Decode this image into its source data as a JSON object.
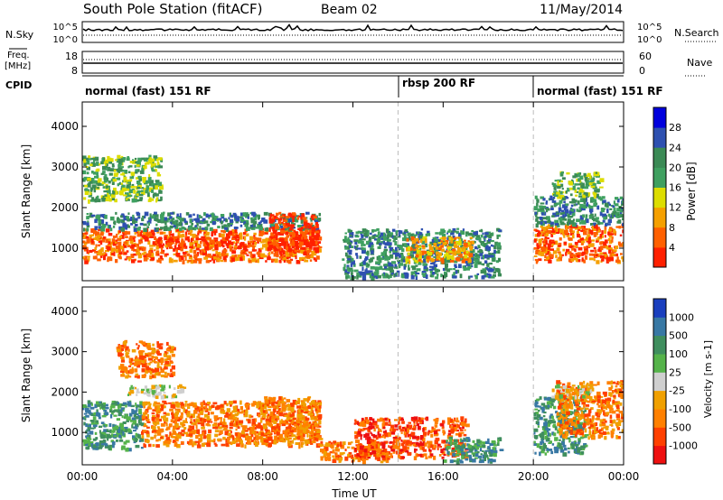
{
  "header": {
    "title": "South Pole Station (fitACF)",
    "beam": "Beam 02",
    "date": "11/May/2014"
  },
  "strip_panels": {
    "nsky": {
      "label": "N.Sky",
      "right_label": "N.Search",
      "left_ticks": [
        "10^5",
        "10^0"
      ],
      "right_ticks": [
        "10^5",
        "10^0"
      ]
    },
    "freq": {
      "label_line1": "Freq.",
      "label_line2": "[MHz]",
      "right_label": "Nave",
      "left_ticks": [
        "18",
        "8"
      ],
      "right_ticks": [
        "60",
        "0"
      ]
    },
    "cpid": {
      "label": "CPID",
      "segments": [
        {
          "label": "normal (fast) 151 RF",
          "start_hour": 0
        },
        {
          "label": "rbsp 200 RF",
          "start_hour": 14
        },
        {
          "label": "normal (fast) 151 RF",
          "start_hour": 20
        }
      ]
    }
  },
  "colors": {
    "power_scale": [
      "#0000dd",
      "#2e50b0",
      "#3b8a55",
      "#3fa060",
      "#dddd00",
      "#f5a000",
      "#ff6000",
      "#ff2000"
    ],
    "velocity_scale": [
      "#1a3fbe",
      "#3878a4",
      "#3f8e5e",
      "#55b34a",
      "#cfcfcf",
      "#f0a000",
      "#ff8000",
      "#ff4000",
      "#ee1010"
    ],
    "ground_scatter": "#bdbdbd"
  },
  "chart_data": [
    {
      "type": "heatmap",
      "panel": "power",
      "ylabel": "Slant Range [km]",
      "yticks": [
        1000,
        2000,
        3000,
        4000
      ],
      "ylim": [
        200,
        4600
      ],
      "xlim": [
        0,
        24
      ],
      "xtick_labels": [
        "00:00",
        "04:00",
        "08:00",
        "12:00",
        "16:00",
        "20:00",
        "00:00"
      ],
      "colorbar": {
        "label": "Power [dB]",
        "ticks": [
          "28",
          "24",
          "20",
          "16",
          "12",
          "8",
          "4"
        ]
      },
      "bands": [
        {
          "t0": 0.0,
          "t1": 10.5,
          "r0": 700,
          "r1": 1500,
          "level": 6
        },
        {
          "t0": 0.0,
          "t1": 10.5,
          "r0": 1500,
          "r1": 1900,
          "level": 2
        },
        {
          "t0": 0.0,
          "t1": 3.5,
          "r0": 2200,
          "r1": 3300,
          "level": 3
        },
        {
          "t0": 3.2,
          "t1": 6.8,
          "r0": 1100,
          "r1": 1300,
          "level": 7
        },
        {
          "t0": 8.2,
          "t1": 10.4,
          "r0": 900,
          "r1": 1900,
          "level": 7
        },
        {
          "t0": 11.5,
          "t1": 18.5,
          "r0": 300,
          "r1": 1500,
          "level": 2
        },
        {
          "t0": 14.3,
          "t1": 17.2,
          "r0": 700,
          "r1": 1300,
          "level": 5
        },
        {
          "t0": 20.0,
          "t1": 24.0,
          "r0": 700,
          "r1": 1600,
          "level": 6
        },
        {
          "t0": 20.0,
          "t1": 24.0,
          "r0": 1600,
          "r1": 2300,
          "level": 2
        },
        {
          "t0": 20.8,
          "t1": 23.0,
          "r0": 2300,
          "r1": 2900,
          "level": 3
        }
      ]
    },
    {
      "type": "heatmap",
      "panel": "velocity",
      "xlabel": "Time UT",
      "ylabel": "Slant Range [km]",
      "yticks": [
        1000,
        2000,
        3000,
        4000
      ],
      "ylim": [
        200,
        4600
      ],
      "xlim": [
        0,
        24
      ],
      "xtick_labels": [
        "00:00",
        "04:00",
        "08:00",
        "12:00",
        "16:00",
        "20:00",
        "00:00"
      ],
      "colorbar": {
        "label": "Velocity [m s-1]",
        "ticks": [
          "1000",
          "500",
          "100",
          "25",
          "-25",
          "-100",
          "-500",
          "-1000"
        ]
      },
      "bands": [
        {
          "t0": 0.0,
          "t1": 2.6,
          "r0": 600,
          "r1": 1800,
          "level": 2
        },
        {
          "t0": 2.6,
          "t1": 10.5,
          "r0": 700,
          "r1": 1800,
          "level": 6
        },
        {
          "t0": 2.0,
          "t1": 4.5,
          "r0": 1900,
          "r1": 2200,
          "level": 4
        },
        {
          "t0": 1.5,
          "t1": 4.0,
          "r0": 2400,
          "r1": 3300,
          "level": 6
        },
        {
          "t0": 8.0,
          "t1": 10.5,
          "r0": 800,
          "r1": 1900,
          "level": 6
        },
        {
          "t0": 10.5,
          "t1": 13.5,
          "r0": 300,
          "r1": 800,
          "level": 6
        },
        {
          "t0": 12.0,
          "t1": 17.0,
          "r0": 400,
          "r1": 1400,
          "level": 7
        },
        {
          "t0": 16.0,
          "t1": 18.5,
          "r0": 300,
          "r1": 900,
          "level": 2
        },
        {
          "t0": 20.0,
          "t1": 22.3,
          "r0": 500,
          "r1": 1900,
          "level": 2
        },
        {
          "t0": 21.0,
          "t1": 24.0,
          "r0": 900,
          "r1": 2300,
          "level": 6
        },
        {
          "t0": 20.8,
          "t1": 22.5,
          "r0": 1900,
          "r1": 2200,
          "level": 4
        }
      ]
    }
  ]
}
